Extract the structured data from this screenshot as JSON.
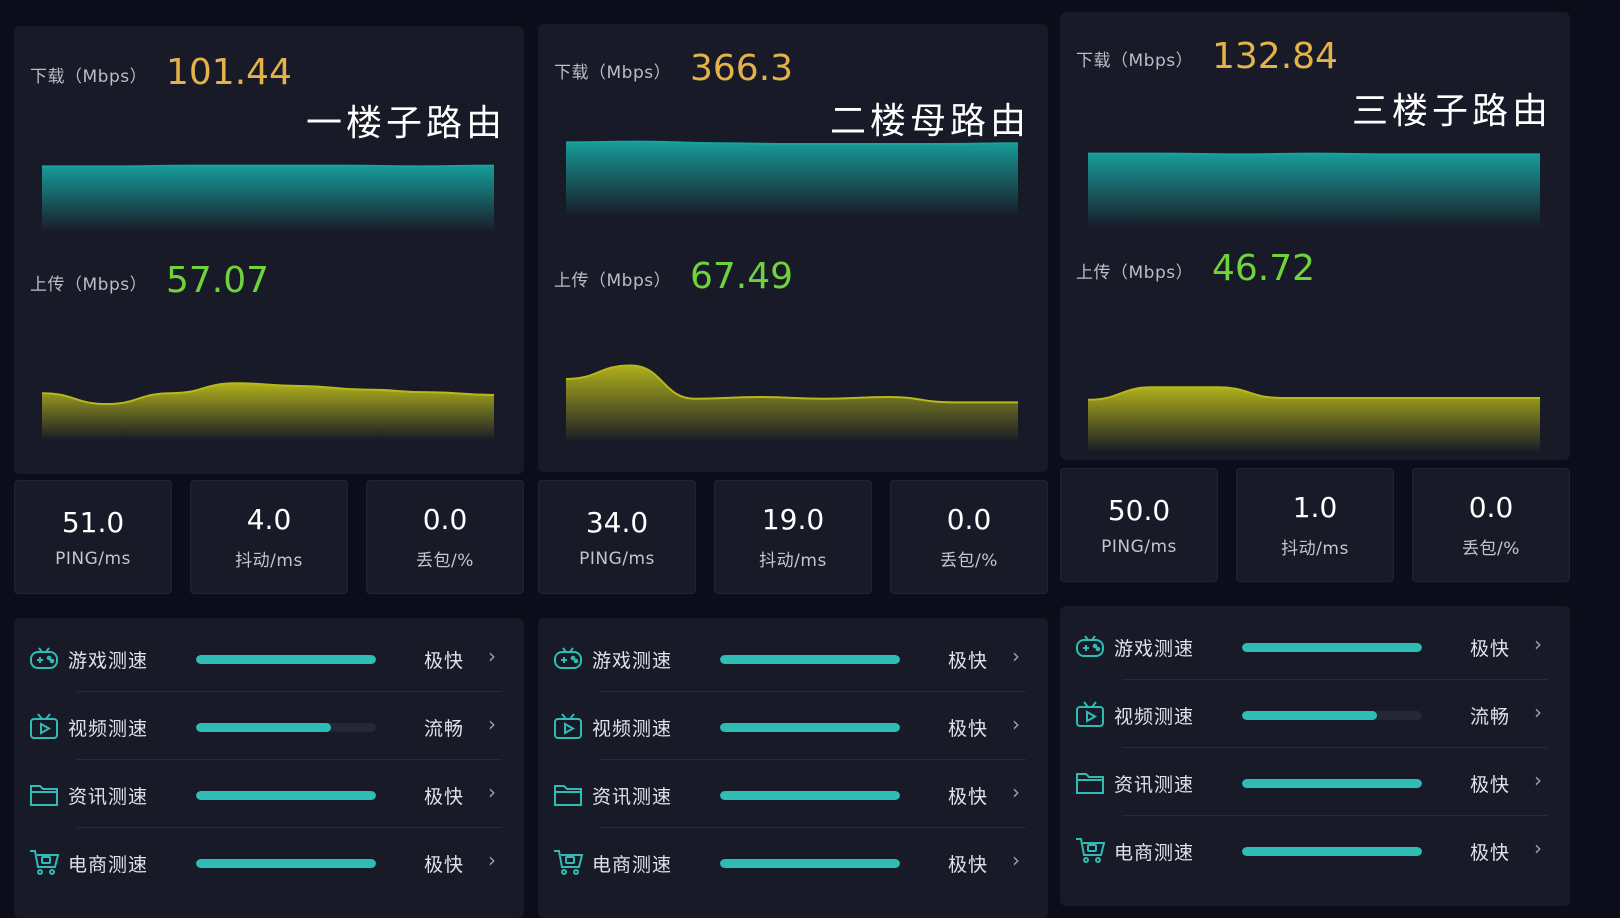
{
  "routers": [
    {
      "title": "一楼子路由",
      "download_label": "下载（Mbps）",
      "download_value": "101.44",
      "upload_label": "上传（Mbps）",
      "upload_value": "57.07",
      "stats": [
        {
          "value": "51.0",
          "label": "PING/ms"
        },
        {
          "value": "4.0",
          "label": "抖动/ms"
        },
        {
          "value": "0.0",
          "label": "丢包/%"
        }
      ],
      "tests": [
        {
          "icon": "gamepad-icon",
          "name": "游戏测速",
          "rating": "极快",
          "level": 1.0
        },
        {
          "icon": "video-icon",
          "name": "视频测速",
          "rating": "流畅",
          "level": 0.75
        },
        {
          "icon": "folder-icon",
          "name": "资讯测速",
          "rating": "极快",
          "level": 1.0
        },
        {
          "icon": "cart-icon",
          "name": "电商测速",
          "rating": "极快",
          "level": 1.0
        }
      ]
    },
    {
      "title": "二楼母路由",
      "download_label": "下载（Mbps）",
      "download_value": "366.3",
      "upload_label": "上传（Mbps）",
      "upload_value": "67.49",
      "stats": [
        {
          "value": "34.0",
          "label": "PING/ms"
        },
        {
          "value": "19.0",
          "label": "抖动/ms"
        },
        {
          "value": "0.0",
          "label": "丢包/%"
        }
      ],
      "tests": [
        {
          "icon": "gamepad-icon",
          "name": "游戏测速",
          "rating": "极快",
          "level": 1.0
        },
        {
          "icon": "video-icon",
          "name": "视频测速",
          "rating": "极快",
          "level": 1.0
        },
        {
          "icon": "folder-icon",
          "name": "资讯测速",
          "rating": "极快",
          "level": 1.0
        },
        {
          "icon": "cart-icon",
          "name": "电商测速",
          "rating": "极快",
          "level": 1.0
        }
      ]
    },
    {
      "title": "三楼子路由",
      "download_label": "下载（Mbps）",
      "download_value": "132.84",
      "upload_label": "上传（Mbps）",
      "upload_value": "46.72",
      "stats": [
        {
          "value": "50.0",
          "label": "PING/ms"
        },
        {
          "value": "1.0",
          "label": "抖动/ms"
        },
        {
          "value": "0.0",
          "label": "丢包/%"
        }
      ],
      "tests": [
        {
          "icon": "gamepad-icon",
          "name": "游戏测速",
          "rating": "极快",
          "level": 1.0
        },
        {
          "icon": "video-icon",
          "name": "视频测速",
          "rating": "流畅",
          "level": 0.75
        },
        {
          "icon": "folder-icon",
          "name": "资讯测速",
          "rating": "极快",
          "level": 1.0
        },
        {
          "icon": "cart-icon",
          "name": "电商测速",
          "rating": "极快",
          "level": 1.0
        }
      ]
    }
  ],
  "colors": {
    "download": "#e3b24a",
    "upload": "#6fd33c",
    "bar": "#2ebcb4",
    "teal_area": "#17a3a0",
    "yellow_area": "#b8b81a"
  },
  "chevron": "›"
}
